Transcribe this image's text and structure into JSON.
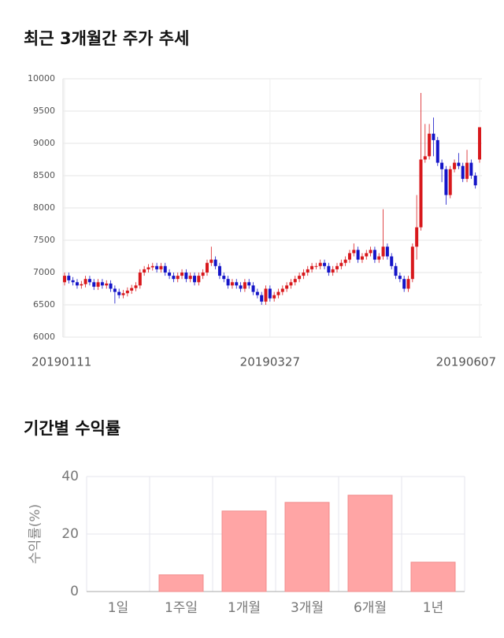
{
  "chart_data": [
    {
      "type": "candlestick",
      "title": "최근 3개월간 주가 추세",
      "categories": [
        "20190111",
        null,
        null,
        null,
        null,
        null,
        null,
        null,
        null,
        null,
        null,
        null,
        null,
        null,
        null,
        null,
        null,
        null,
        null,
        null,
        null,
        null,
        null,
        null,
        null,
        null,
        null,
        null,
        null,
        null,
        null,
        null,
        null,
        null,
        null,
        null,
        null,
        null,
        null,
        null,
        null,
        null,
        null,
        null,
        null,
        null,
        null,
        null,
        null,
        "20190327",
        null,
        null,
        null,
        null,
        null,
        null,
        null,
        null,
        null,
        null,
        null,
        null,
        null,
        null,
        null,
        null,
        null,
        null,
        null,
        null,
        null,
        null,
        null,
        null,
        null,
        null,
        null,
        null,
        null,
        null,
        null,
        null,
        null,
        null,
        null,
        null,
        null,
        null,
        null,
        null,
        null,
        null,
        null,
        null,
        null,
        null,
        null,
        null,
        null,
        "20190607"
      ],
      "open": [
        6850,
        6950,
        6880,
        6850,
        6800,
        6820,
        6900,
        6850,
        6780,
        6850,
        6800,
        6830,
        6750,
        6700,
        6650,
        6680,
        6720,
        6760,
        6800,
        7000,
        7050,
        7080,
        7100,
        7050,
        7100,
        7000,
        6950,
        6900,
        6950,
        7000,
        6900,
        6950,
        6850,
        6950,
        7000,
        7150,
        7200,
        7100,
        6950,
        6900,
        6800,
        6850,
        6800,
        6750,
        6850,
        6800,
        6700,
        6650,
        6550,
        6750,
        6600,
        6650,
        6700,
        6750,
        6800,
        6850,
        6900,
        6950,
        7000,
        7050,
        7100,
        7100,
        7150,
        7100,
        7000,
        7050,
        7100,
        7150,
        7200,
        7300,
        7350,
        7200,
        7250,
        7300,
        7350,
        7200,
        7250,
        7400,
        7250,
        7100,
        6950,
        6900,
        6750,
        6900,
        7400,
        7700,
        8750,
        8800,
        9150,
        9050,
        8700,
        8600,
        8200,
        8600,
        8700,
        8650,
        8450,
        8700,
        8500,
        8750
      ],
      "high": [
        7000,
        7000,
        6930,
        6900,
        6870,
        6950,
        6950,
        6900,
        6900,
        6900,
        6880,
        6880,
        6800,
        6750,
        6730,
        6770,
        6810,
        6850,
        7050,
        7100,
        7130,
        7150,
        7150,
        7150,
        7150,
        7050,
        7000,
        7000,
        7050,
        7050,
        7000,
        7000,
        7000,
        7050,
        7200,
        7400,
        7250,
        7150,
        7000,
        6950,
        6900,
        6900,
        6850,
        6900,
        6900,
        6850,
        6750,
        6700,
        6800,
        6800,
        6700,
        6750,
        6800,
        6850,
        6900,
        6950,
        7000,
        7050,
        7100,
        7150,
        7150,
        7200,
        7200,
        7150,
        7100,
        7150,
        7200,
        7250,
        7350,
        7450,
        7400,
        7300,
        7350,
        7400,
        7400,
        7300,
        7980,
        7450,
        7300,
        7150,
        7000,
        6950,
        6950,
        7450,
        8200,
        9780,
        9300,
        9300,
        9400,
        9100,
        8750,
        8650,
        8650,
        8750,
        8850,
        8700,
        8900,
        8750,
        8550,
        9250
      ],
      "low": [
        6800,
        6830,
        6800,
        6750,
        6750,
        6770,
        6800,
        6730,
        6730,
        6750,
        6750,
        6700,
        6520,
        6600,
        6600,
        6630,
        6670,
        6710,
        6750,
        6950,
        7000,
        7030,
        7000,
        7000,
        6950,
        6900,
        6850,
        6850,
        6900,
        6850,
        6850,
        6800,
        6800,
        6900,
        6950,
        7100,
        7050,
        6900,
        6850,
        6750,
        6750,
        6750,
        6700,
        6700,
        6750,
        6650,
        6600,
        6500,
        6500,
        6550,
        6550,
        6600,
        6650,
        6700,
        6750,
        6800,
        6850,
        6900,
        6950,
        7000,
        7050,
        7050,
        7050,
        6950,
        6950,
        7000,
        7050,
        7100,
        7150,
        7250,
        7150,
        7150,
        7200,
        7250,
        7150,
        7150,
        7200,
        7200,
        7050,
        6900,
        6850,
        6700,
        6700,
        6850,
        7200,
        7650,
        8700,
        8750,
        8800,
        8650,
        8400,
        8050,
        8150,
        8550,
        8600,
        8400,
        8400,
        8450,
        8300,
        8700
      ],
      "close": [
        6950,
        6880,
        6850,
        6800,
        6820,
        6900,
        6850,
        6780,
        6850,
        6800,
        6830,
        6750,
        6700,
        6650,
        6680,
        6720,
        6760,
        6800,
        7000,
        7050,
        7080,
        7100,
        7050,
        7100,
        7000,
        6950,
        6900,
        6950,
        7000,
        6900,
        6950,
        6850,
        6950,
        7000,
        7150,
        7200,
        7100,
        6950,
        6900,
        6800,
        6850,
        6800,
        6750,
        6850,
        6800,
        6700,
        6650,
        6550,
        6750,
        6600,
        6650,
        6700,
        6750,
        6800,
        6850,
        6900,
        6950,
        7000,
        7050,
        7100,
        7100,
        7150,
        7100,
        7000,
        7050,
        7100,
        7150,
        7200,
        7300,
        7350,
        7200,
        7250,
        7300,
        7350,
        7200,
        7250,
        7400,
        7250,
        7100,
        6950,
        6900,
        6750,
        6900,
        7400,
        7700,
        8750,
        8800,
        9150,
        9050,
        8700,
        8600,
        8200,
        8600,
        8700,
        8650,
        8450,
        8700,
        8500,
        8350,
        9250
      ],
      "up_color": "#d8181c",
      "down_color": "#1414c8",
      "ylim": [
        6000,
        10000
      ],
      "yticks": [
        6000,
        6500,
        7000,
        7500,
        8000,
        8500,
        9000,
        9500,
        10000
      ],
      "grid": true
    },
    {
      "type": "bar",
      "title": "기간별 수익률",
      "ylabel": "수익률(%)",
      "categories": [
        "1일",
        "1주일",
        "1개월",
        "3개월",
        "6개월",
        "1년"
      ],
      "values": [
        0,
        5.8,
        28,
        31,
        33.5,
        10.2
      ],
      "color": "#ffa5a5",
      "ylim": [
        0,
        40
      ],
      "yticks": [
        0,
        20,
        40
      ],
      "grid": true
    }
  ]
}
